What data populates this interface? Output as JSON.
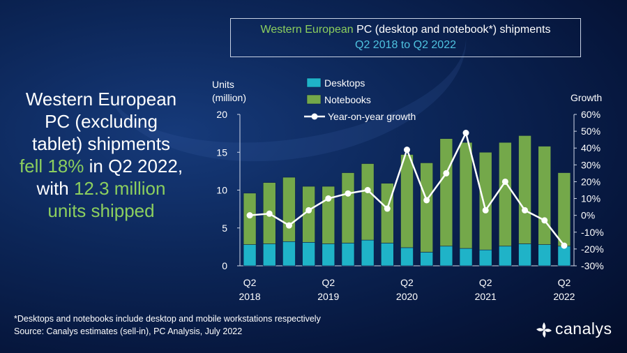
{
  "headline": {
    "line1": "Western European",
    "line2": "PC (excluding",
    "line3": "tablet) shipments",
    "line4_green": "fell 18%",
    "line4_rest": " in Q2 2022,",
    "line5_pre": "with ",
    "line5_green": "12.3 million",
    "line6_green": "units shipped"
  },
  "title_box": {
    "line1_green": "Western European",
    "line1_rest": " PC (desktop and notebook*) shipments",
    "line2": "Q2 2018 to Q2 2022"
  },
  "footnote": {
    "line1": "*Desktops and notebooks include desktop and mobile workstations respectively",
    "line2": "Source: Canalys estimates (sell-in), PC Analysis, July 2022"
  },
  "logo": {
    "text": "canalys",
    "icon": "canalys-logo-icon"
  },
  "colors": {
    "desktops": "#1fb3c8",
    "notebooks": "#74a84a",
    "growth_line": "#ffffff",
    "accent_green": "#8ccf5e",
    "accent_blue": "#4fc3e0"
  },
  "chart_data": {
    "type": "bar",
    "stacked": true,
    "categories": [
      "Q2 2018",
      "Q3 2018",
      "Q4 2018",
      "Q1 2019",
      "Q2 2019",
      "Q3 2019",
      "Q4 2019",
      "Q1 2020",
      "Q2 2020",
      "Q3 2020",
      "Q4 2020",
      "Q1 2021",
      "Q2 2021",
      "Q3 2021",
      "Q4 2021",
      "Q1 2022",
      "Q2 2022"
    ],
    "x_tick_labels": [
      {
        "index": 0,
        "top": "Q2",
        "bottom": "2018"
      },
      {
        "index": 4,
        "top": "Q2",
        "bottom": "2019"
      },
      {
        "index": 8,
        "top": "Q2",
        "bottom": "2020"
      },
      {
        "index": 12,
        "top": "Q2",
        "bottom": "2021"
      },
      {
        "index": 16,
        "top": "Q2",
        "bottom": "2022"
      }
    ],
    "series": [
      {
        "name": "Desktops",
        "values": [
          2.8,
          2.9,
          3.2,
          3.1,
          2.9,
          3.0,
          3.4,
          3.0,
          2.4,
          1.8,
          2.6,
          2.3,
          2.1,
          2.6,
          2.9,
          2.8,
          2.6
        ]
      },
      {
        "name": "Notebooks",
        "values": [
          6.8,
          8.1,
          8.5,
          7.4,
          7.6,
          9.3,
          10.1,
          7.9,
          12.3,
          11.8,
          14.2,
          14.0,
          12.9,
          13.7,
          14.3,
          13.0,
          9.7
        ]
      }
    ],
    "line_series": {
      "name": "Year-on-year growth",
      "values": [
        0,
        1,
        -6,
        3,
        10,
        13,
        15,
        4,
        39,
        9,
        25,
        49,
        3,
        20,
        3,
        -3,
        -18
      ]
    },
    "ylabel": "Units\n(million)",
    "ylabel_line1": "Units",
    "ylabel_line2": "(million)",
    "y2label": "Growth",
    "ylim": [
      0,
      20
    ],
    "yticks": [
      0,
      5,
      10,
      15,
      20
    ],
    "y2lim": [
      -30,
      60
    ],
    "y2ticks": [
      "-30%",
      "-20%",
      "-10%",
      "0%",
      "10%",
      "20%",
      "30%",
      "40%",
      "50%",
      "60%"
    ],
    "legend": [
      "Desktops",
      "Notebooks",
      "Year-on-year growth"
    ],
    "legend_position": "top-left"
  }
}
